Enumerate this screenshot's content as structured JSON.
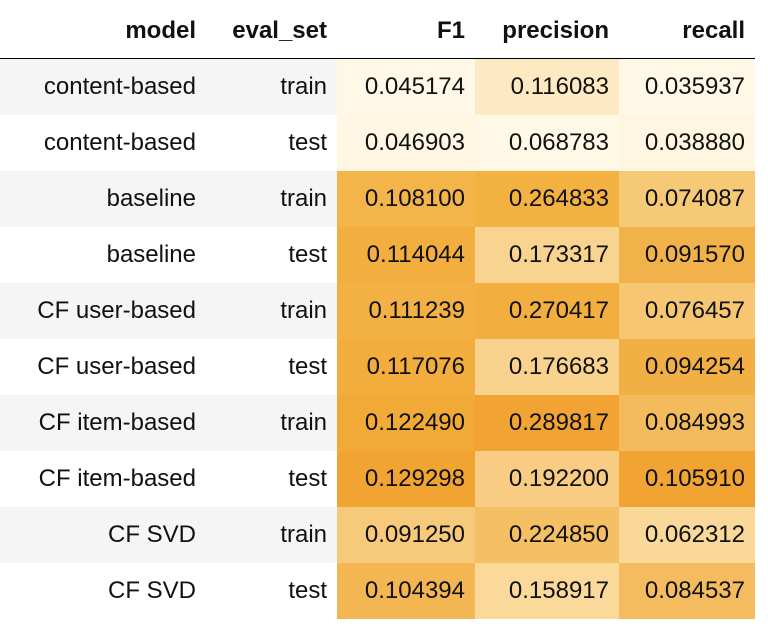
{
  "table": {
    "headers": [
      "model",
      "eval_set",
      "F1",
      "precision",
      "recall"
    ],
    "rows": [
      {
        "model": "content-based",
        "eval_set": "train",
        "F1": "0.045174",
        "precision": "0.116083",
        "recall": "0.035937",
        "colors": {
          "F1": "#fff8e6",
          "precision": "#fde9c2",
          "recall": "#fff8e6"
        }
      },
      {
        "model": "content-based",
        "eval_set": "test",
        "F1": "0.046903",
        "precision": "0.068783",
        "recall": "0.038880",
        "colors": {
          "F1": "#fff7e4",
          "precision": "#fff8e6",
          "recall": "#fff6e2"
        }
      },
      {
        "model": "baseline",
        "eval_set": "train",
        "F1": "0.108100",
        "precision": "0.264833",
        "recall": "0.074087",
        "colors": {
          "F1": "#f3b44a",
          "precision": "#f2b141",
          "recall": "#f6c977"
        }
      },
      {
        "model": "baseline",
        "eval_set": "test",
        "F1": "0.114044",
        "precision": "0.173317",
        "recall": "0.091570",
        "colors": {
          "F1": "#f2af40",
          "precision": "#f9d491",
          "recall": "#f2b24a"
        }
      },
      {
        "model": "CF user-based",
        "eval_set": "train",
        "F1": "0.111239",
        "precision": "0.270417",
        "recall": "0.076457",
        "colors": {
          "F1": "#f3b145",
          "precision": "#f2ae3e",
          "recall": "#f6c672"
        }
      },
      {
        "model": "CF user-based",
        "eval_set": "test",
        "F1": "0.117076",
        "precision": "0.176683",
        "recall": "0.094254",
        "colors": {
          "F1": "#f2ad3d",
          "precision": "#f9d28d",
          "recall": "#f2af44"
        }
      },
      {
        "model": "CF item-based",
        "eval_set": "train",
        "F1": "0.122490",
        "precision": "0.289817",
        "recall": "0.084993",
        "colors": {
          "F1": "#f2aa37",
          "precision": "#f1a433",
          "recall": "#f4bb5c"
        }
      },
      {
        "model": "CF item-based",
        "eval_set": "test",
        "F1": "0.129298",
        "precision": "0.192200",
        "recall": "0.105910",
        "colors": {
          "F1": "#f1a432",
          "precision": "#f8cd83",
          "recall": "#f1a432"
        }
      },
      {
        "model": "CF SVD",
        "eval_set": "train",
        "F1": "0.091250",
        "precision": "0.224850",
        "recall": "0.062312",
        "colors": {
          "F1": "#f7c97a",
          "precision": "#f5c064",
          "recall": "#f9d899"
        }
      },
      {
        "model": "CF SVD",
        "eval_set": "test",
        "F1": "0.104394",
        "precision": "0.158917",
        "recall": "0.084537",
        "colors": {
          "F1": "#f4b652",
          "precision": "#fad99b",
          "recall": "#f4bc5e"
        }
      }
    ]
  }
}
